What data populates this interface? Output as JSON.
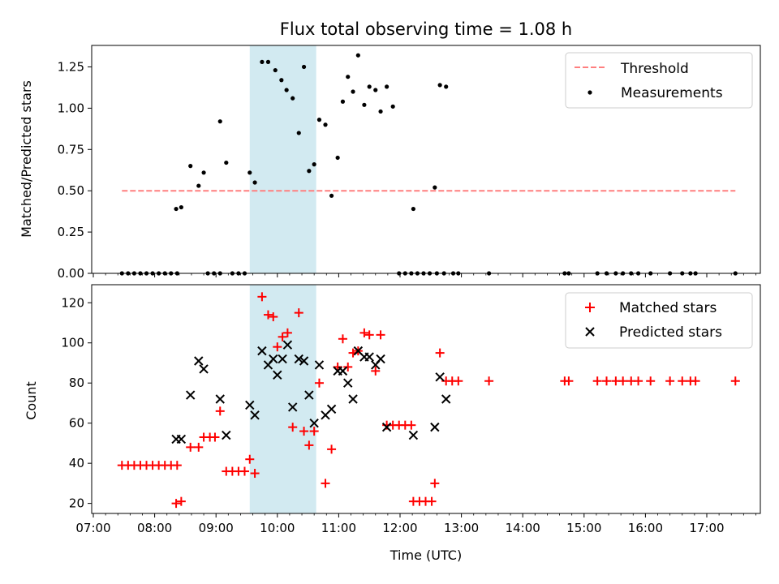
{
  "chart_data": [
    {
      "type": "scatter",
      "title": "Flux total observing time = 1.08 h",
      "xlabel": "",
      "ylabel": "Matched/Predicted stars",
      "xlim": [
        "07:00",
        "18:00"
      ],
      "ylim": [
        0,
        1.38
      ],
      "yticks": [
        "0.00",
        "0.25",
        "0.50",
        "0.75",
        "1.00",
        "1.25"
      ],
      "highlight_span": {
        "from": "09:33",
        "to": "10:38",
        "color": "#add8e6"
      },
      "legend": {
        "placement": "top-right",
        "entries": [
          "Threshold",
          "Measurements"
        ]
      },
      "series": [
        {
          "name": "Threshold",
          "style": "dashed-line",
          "color": "#ff7f7f",
          "points": [
            [
              "07:28",
              0.5
            ],
            [
              "17:28",
              0.5
            ]
          ]
        },
        {
          "name": "Measurements",
          "style": "dot",
          "color": "#000000",
          "points": [
            [
              "07:28",
              0
            ],
            [
              "07:34",
              0
            ],
            [
              "07:40",
              0
            ],
            [
              "07:46",
              0
            ],
            [
              "07:52",
              0
            ],
            [
              "07:58",
              0
            ],
            [
              "08:04",
              0
            ],
            [
              "08:10",
              0
            ],
            [
              "08:16",
              0
            ],
            [
              "08:22",
              0
            ],
            [
              "08:21",
              0.39
            ],
            [
              "08:26",
              0.4
            ],
            [
              "08:35",
              0.65
            ],
            [
              "08:43",
              0.53
            ],
            [
              "08:48",
              0.61
            ],
            [
              "08:52",
              0
            ],
            [
              "08:58",
              0
            ],
            [
              "09:04",
              0
            ],
            [
              "09:04",
              0.92
            ],
            [
              "09:10",
              0.67
            ],
            [
              "09:16",
              0
            ],
            [
              "09:22",
              0
            ],
            [
              "09:28",
              0
            ],
            [
              "09:33",
              0.61
            ],
            [
              "09:38",
              0.55
            ],
            [
              "09:45",
              1.28
            ],
            [
              "09:51",
              1.28
            ],
            [
              "09:58",
              1.23
            ],
            [
              "10:04",
              1.17
            ],
            [
              "10:09",
              1.11
            ],
            [
              "10:15",
              1.06
            ],
            [
              "10:21",
              0.85
            ],
            [
              "10:26",
              1.25
            ],
            [
              "10:31",
              0.62
            ],
            [
              "10:36",
              0.66
            ],
            [
              "10:41",
              0.93
            ],
            [
              "10:47",
              0.9
            ],
            [
              "10:53",
              0.47
            ],
            [
              "10:59",
              0.7
            ],
            [
              "11:04",
              1.04
            ],
            [
              "11:09",
              1.19
            ],
            [
              "11:14",
              1.1
            ],
            [
              "11:19",
              1.32
            ],
            [
              "11:25",
              1.02
            ],
            [
              "11:30",
              1.13
            ],
            [
              "11:36",
              1.11
            ],
            [
              "11:41",
              0.98
            ],
            [
              "11:47",
              1.13
            ],
            [
              "11:53",
              1.01
            ],
            [
              "11:59",
              0
            ],
            [
              "12:05",
              0
            ],
            [
              "12:11",
              0
            ],
            [
              "12:17",
              0
            ],
            [
              "12:23",
              0
            ],
            [
              "12:29",
              0
            ],
            [
              "12:36",
              0
            ],
            [
              "12:43",
              0
            ],
            [
              "12:13",
              0.39
            ],
            [
              "12:34",
              0.52
            ],
            [
              "12:39",
              1.14
            ],
            [
              "12:45",
              1.13
            ],
            [
              "12:52",
              0
            ],
            [
              "12:57",
              0
            ],
            [
              "13:27",
              0
            ],
            [
              "14:41",
              0
            ],
            [
              "14:45",
              0
            ],
            [
              "15:13",
              0
            ],
            [
              "15:22",
              0
            ],
            [
              "15:31",
              0
            ],
            [
              "15:38",
              0
            ],
            [
              "15:46",
              0
            ],
            [
              "15:53",
              0
            ],
            [
              "16:05",
              0
            ],
            [
              "16:24",
              0
            ],
            [
              "16:36",
              0
            ],
            [
              "16:44",
              0
            ],
            [
              "16:49",
              0
            ],
            [
              "17:28",
              0
            ]
          ]
        }
      ]
    },
    {
      "type": "scatter",
      "title": "",
      "xlabel": "Time (UTC)",
      "ylabel": "Count",
      "xlim": [
        "07:00",
        "18:00"
      ],
      "ylim": [
        15,
        129
      ],
      "xticks": [
        "07:00",
        "08:00",
        "09:00",
        "10:00",
        "11:00",
        "12:00",
        "13:00",
        "14:00",
        "15:00",
        "16:00",
        "17:00"
      ],
      "yticks": [
        "20",
        "40",
        "60",
        "80",
        "100",
        "120"
      ],
      "highlight_span": {
        "from": "09:33",
        "to": "10:38",
        "color": "#add8e6"
      },
      "legend": {
        "placement": "top-right",
        "entries": [
          "Matched stars",
          "Predicted stars"
        ]
      },
      "series": [
        {
          "name": "Matched stars",
          "marker": "plus",
          "color": "#ff0000",
          "points": [
            [
              "07:28",
              39
            ],
            [
              "07:34",
              39
            ],
            [
              "07:40",
              39
            ],
            [
              "07:46",
              39
            ],
            [
              "07:52",
              39
            ],
            [
              "07:58",
              39
            ],
            [
              "08:04",
              39
            ],
            [
              "08:10",
              39
            ],
            [
              "08:16",
              39
            ],
            [
              "08:22",
              39
            ],
            [
              "08:21",
              20
            ],
            [
              "08:26",
              21
            ],
            [
              "08:35",
              48
            ],
            [
              "08:43",
              48
            ],
            [
              "08:48",
              53
            ],
            [
              "08:54",
              53
            ],
            [
              "08:59",
              53
            ],
            [
              "09:04",
              66
            ],
            [
              "09:10",
              36
            ],
            [
              "09:16",
              36
            ],
            [
              "09:22",
              36
            ],
            [
              "09:28",
              36
            ],
            [
              "09:33",
              42
            ],
            [
              "09:38",
              35
            ],
            [
              "09:45",
              123
            ],
            [
              "09:51",
              114
            ],
            [
              "09:56",
              113
            ],
            [
              "10:00",
              98
            ],
            [
              "10:05",
              103
            ],
            [
              "10:10",
              105
            ],
            [
              "10:15",
              58
            ],
            [
              "10:21",
              115
            ],
            [
              "10:26",
              56
            ],
            [
              "10:31",
              49
            ],
            [
              "10:36",
              56
            ],
            [
              "10:41",
              80
            ],
            [
              "10:47",
              30
            ],
            [
              "10:53",
              47
            ],
            [
              "10:59",
              88
            ],
            [
              "11:04",
              102
            ],
            [
              "11:09",
              88
            ],
            [
              "11:14",
              95
            ],
            [
              "11:19",
              96
            ],
            [
              "11:25",
              105
            ],
            [
              "11:30",
              104
            ],
            [
              "11:36",
              86
            ],
            [
              "11:41",
              104
            ],
            [
              "11:47",
              59
            ],
            [
              "11:53",
              59
            ],
            [
              "11:59",
              59
            ],
            [
              "12:05",
              59
            ],
            [
              "12:11",
              59
            ],
            [
              "12:13",
              21
            ],
            [
              "12:19",
              21
            ],
            [
              "12:25",
              21
            ],
            [
              "12:31",
              21
            ],
            [
              "12:34",
              30
            ],
            [
              "12:39",
              95
            ],
            [
              "12:45",
              81
            ],
            [
              "12:51",
              81
            ],
            [
              "12:57",
              81
            ],
            [
              "13:27",
              81
            ],
            [
              "14:41",
              81
            ],
            [
              "14:45",
              81
            ],
            [
              "15:13",
              81
            ],
            [
              "15:22",
              81
            ],
            [
              "15:31",
              81
            ],
            [
              "15:38",
              81
            ],
            [
              "15:46",
              81
            ],
            [
              "15:53",
              81
            ],
            [
              "16:05",
              81
            ],
            [
              "16:24",
              81
            ],
            [
              "16:36",
              81
            ],
            [
              "16:44",
              81
            ],
            [
              "16:49",
              81
            ],
            [
              "17:28",
              81
            ]
          ]
        },
        {
          "name": "Predicted stars",
          "marker": "x",
          "color": "#000000",
          "points": [
            [
              "08:21",
              52
            ],
            [
              "08:26",
              52
            ],
            [
              "08:35",
              74
            ],
            [
              "08:43",
              91
            ],
            [
              "08:48",
              87
            ],
            [
              "09:04",
              72
            ],
            [
              "09:10",
              54
            ],
            [
              "09:33",
              69
            ],
            [
              "09:38",
              64
            ],
            [
              "09:45",
              96
            ],
            [
              "09:51",
              89
            ],
            [
              "09:56",
              92
            ],
            [
              "10:00",
              84
            ],
            [
              "10:05",
              92
            ],
            [
              "10:10",
              99
            ],
            [
              "10:15",
              68
            ],
            [
              "10:21",
              92
            ],
            [
              "10:26",
              91
            ],
            [
              "10:31",
              74
            ],
            [
              "10:36",
              60
            ],
            [
              "10:41",
              89
            ],
            [
              "10:47",
              64
            ],
            [
              "10:53",
              67
            ],
            [
              "10:59",
              86
            ],
            [
              "11:04",
              86
            ],
            [
              "11:09",
              80
            ],
            [
              "11:14",
              72
            ],
            [
              "11:19",
              96
            ],
            [
              "11:25",
              93
            ],
            [
              "11:30",
              93
            ],
            [
              "11:36",
              89
            ],
            [
              "11:41",
              92
            ],
            [
              "11:47",
              58
            ],
            [
              "12:13",
              54
            ],
            [
              "12:34",
              58
            ],
            [
              "12:39",
              83
            ],
            [
              "12:45",
              72
            ]
          ]
        }
      ]
    }
  ]
}
